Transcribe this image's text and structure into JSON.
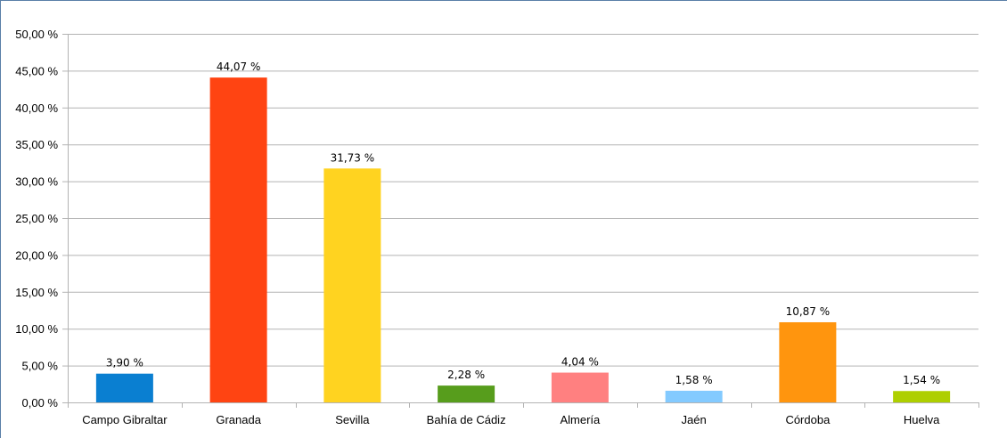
{
  "chart_data": {
    "type": "bar",
    "categories": [
      "Campo Gibraltar",
      "Granada",
      "Sevilla",
      "Bahía de Cádiz",
      "Almería",
      "Jaén",
      "Córdoba",
      "Huelva"
    ],
    "values": [
      3.9,
      44.07,
      31.73,
      2.28,
      4.04,
      1.58,
      10.87,
      1.54
    ],
    "value_labels": [
      "3,90 %",
      "44,07 %",
      "31,73 %",
      "2,28 %",
      "4,04 %",
      "1,58 %",
      "10,87 %",
      "1,54 %"
    ],
    "colors": [
      "#0a7fd1",
      "#ff4412",
      "#ffd320",
      "#579d1c",
      "#ff8080",
      "#83caff",
      "#ff950e",
      "#aecf00"
    ],
    "ylim": [
      0,
      50
    ],
    "yticks": [
      0,
      5,
      10,
      15,
      20,
      25,
      30,
      35,
      40,
      45,
      50
    ],
    "ytick_labels": [
      "0,00 %",
      "5,00 %",
      "10,00 %",
      "15,00 %",
      "20,00 %",
      "25,00 %",
      "30,00 %",
      "35,00 %",
      "40,00 %",
      "45,00 %",
      "50,00 %"
    ],
    "grid": true,
    "grid_color": "#b3b3b3",
    "axis_color": "#b3b3b3",
    "legend": false
  }
}
